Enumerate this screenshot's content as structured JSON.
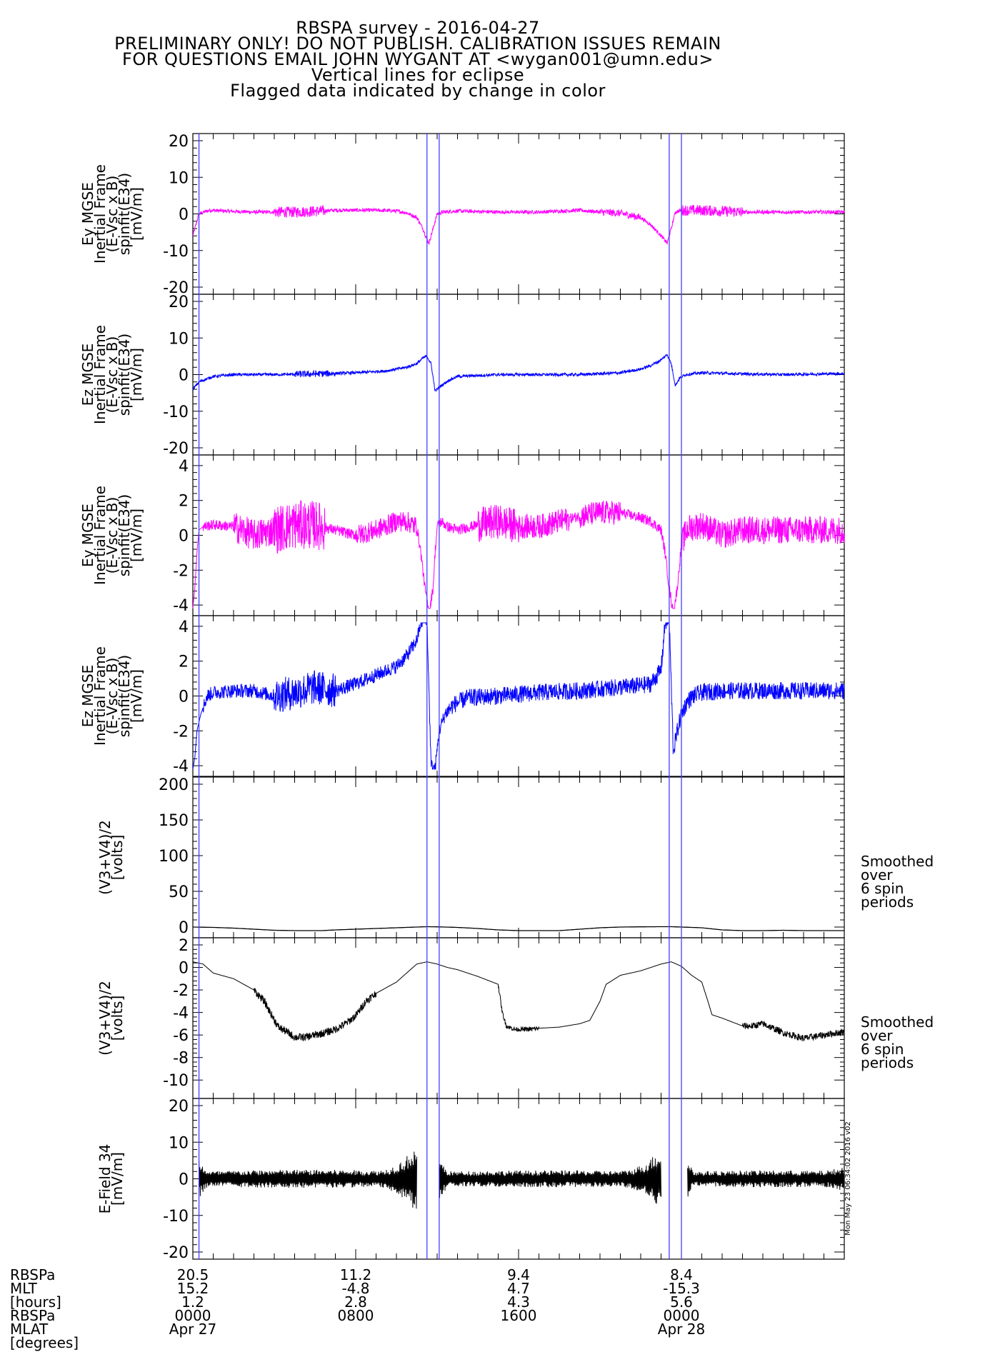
{
  "header": {
    "lines": [
      "RBSPA survey - 2016-04-27",
      "PRELIMINARY ONLY! DO NOT PUBLISH. CALIBRATION ISSUES REMAIN",
      "FOR QUESTIONS EMAIL JOHN WYGANT AT <wygan001@umn.edu>",
      "Vertical lines for eclipse",
      "Flagged data indicated by change in color"
    ]
  },
  "colors": {
    "magenta": "#ff00ff",
    "blue": "#0000ff",
    "black": "#000000",
    "eclipse": "#4040ff"
  },
  "side_note": "Mon May 23 06:34:02 2016 v02",
  "chart_data": [
    {
      "type": "line",
      "id": "panel1",
      "ylabel_lines": [
        "Ey MGSE",
        "Inertial Frame",
        "(E-Vsc x B)",
        "spinfit(E34)",
        "[mV/m]"
      ],
      "yticks": [
        "20",
        "10",
        "0",
        "-10",
        "-20"
      ],
      "ylim": [
        -20,
        20
      ],
      "series": [
        {
          "color": "magenta",
          "x": [
            0,
            0.3,
            0.8,
            1.5,
            3,
            5,
            7,
            9,
            10,
            10.5,
            11,
            11.3,
            11.5,
            11.6,
            11.8,
            12,
            12.3,
            13,
            15,
            17,
            19,
            20,
            21,
            22,
            22.5,
            23,
            23.3,
            23.5,
            23.7,
            24,
            25,
            27,
            29,
            31,
            32
          ],
          "y": [
            -6,
            0,
            1,
            0.8,
            0.5,
            0.5,
            1,
            1,
            0.8,
            0.3,
            -1,
            -4,
            -7,
            -8,
            -4,
            0,
            0.5,
            0.8,
            0.5,
            0.5,
            1,
            0.5,
            0.2,
            -1,
            -3,
            -6,
            -8,
            -4,
            0.5,
            1,
            1,
            0.5,
            0.5,
            0.5,
            0.5
          ]
        }
      ],
      "noise": [
        [
          0,
          32,
          0.5
        ],
        [
          4,
          6.5,
          1.5
        ],
        [
          20,
          22,
          1
        ],
        [
          24,
          27,
          1.5
        ]
      ]
    },
    {
      "type": "line",
      "id": "panel2",
      "ylabel_lines": [
        "Ez MGSE",
        "Inertial Frame",
        "(E-Vsc x B)",
        "spinfit(E34)",
        "[mV/m]"
      ],
      "yticks": [
        "20",
        "10",
        "0",
        "-10",
        "-20"
      ],
      "ylim": [
        -20,
        20
      ],
      "series": [
        {
          "color": "blue",
          "x": [
            0,
            0.3,
            1,
            2,
            4,
            6,
            8,
            9.5,
            10.5,
            11,
            11.3,
            11.5,
            11.7,
            11.9,
            12.2,
            12.6,
            13,
            15,
            17,
            19,
            21,
            22,
            22.5,
            23,
            23.3,
            23.5,
            23.7,
            23.9,
            24.2,
            25,
            27,
            29,
            31,
            32
          ],
          "y": [
            -4,
            -2,
            -0.5,
            0,
            0,
            0.2,
            0.5,
            1,
            2,
            3,
            4.5,
            5,
            3,
            -4.5,
            -3,
            -1.5,
            -0.5,
            0,
            0,
            0,
            0.5,
            1.5,
            2.5,
            4,
            5.5,
            3,
            -3,
            -1,
            0,
            0.5,
            0.2,
            0,
            0.2,
            0.3
          ]
        }
      ],
      "noise": [
        [
          0,
          32,
          0.4
        ],
        [
          5,
          7,
          0.9
        ]
      ]
    },
    {
      "type": "line",
      "id": "panel3",
      "ylabel_lines": [
        "Ey MGSE",
        "Inertial Frame",
        "(E-Vsc x B)",
        "spinfit(E34)",
        "[mV/m]"
      ],
      "yticks": [
        "4",
        "2",
        "0",
        "-2",
        "-4"
      ],
      "ylim": [
        -4.2,
        4.2
      ],
      "series": [
        {
          "color": "magenta",
          "x": [
            0,
            0.1,
            0.2,
            0.3,
            0.5,
            1,
            2,
            3,
            4,
            5,
            6,
            7,
            8,
            9,
            10,
            10.5,
            11,
            11.2,
            11.4,
            11.6,
            11.8,
            11.9,
            12,
            12.2,
            12.5,
            13,
            14,
            15,
            16,
            17,
            18,
            19,
            20,
            21,
            22,
            22.5,
            23,
            23.2,
            23.4,
            23.6,
            23.8,
            24,
            24.3,
            25,
            26,
            27,
            28,
            29,
            30,
            31,
            32
          ],
          "y": [
            -4.2,
            -3,
            -1,
            0.3,
            0.5,
            0.6,
            0.5,
            0,
            0.3,
            0.6,
            0.6,
            0.3,
            0,
            0.3,
            0.8,
            0.8,
            0.5,
            -1,
            -3,
            -4.5,
            -3,
            -1,
            0.5,
            0.8,
            0.5,
            0.3,
            0.6,
            0.8,
            0.5,
            0.5,
            0.8,
            1.1,
            1.3,
            1.3,
            1.0,
            0.8,
            0.3,
            -1,
            -3,
            -4.5,
            -3,
            -0.5,
            0.4,
            0.6,
            0,
            0.3,
            0.3,
            0.3,
            0.3,
            0.3,
            0.3
          ]
        }
      ],
      "noise": [
        [
          0.5,
          32,
          0.3
        ],
        [
          2,
          4,
          0.9
        ],
        [
          4,
          6.5,
          1.4
        ],
        [
          8,
          11,
          0.6
        ],
        [
          14,
          16,
          1.0
        ],
        [
          16,
          18.5,
          0.7
        ],
        [
          19,
          21,
          0.7
        ],
        [
          24,
          25,
          0.8
        ],
        [
          25,
          32,
          0.8
        ]
      ]
    },
    {
      "type": "line",
      "id": "panel4",
      "ylabel_lines": [
        "Ez MGSE",
        "Inertial Frame",
        "(E-Vsc x B)",
        "spinfit(E34)",
        "[mV/m]"
      ],
      "yticks": [
        "4",
        "2",
        "0",
        "-2",
        "-4"
      ],
      "ylim": [
        -4.2,
        4.2
      ],
      "series": [
        {
          "color": "blue",
          "x": [
            0,
            0.1,
            0.2,
            0.4,
            0.7,
            1,
            2,
            3,
            4,
            5,
            6,
            7,
            8,
            9,
            10,
            10.5,
            11,
            11.2,
            11.5,
            11.7,
            11.9,
            12.1,
            12.4,
            12.8,
            13.5,
            15,
            17,
            19,
            21,
            22,
            22.5,
            23,
            23.2,
            23.4,
            23.6,
            23.8,
            24,
            24.3,
            24.6,
            25,
            26,
            28,
            30,
            32
          ],
          "y": [
            -4.2,
            -3.5,
            -2,
            -1,
            0,
            0.2,
            0.3,
            0.3,
            0,
            0.2,
            0.5,
            0.3,
            0.7,
            1.2,
            1.7,
            2.3,
            3.2,
            4.2,
            4.5,
            -4,
            -4.2,
            -2,
            -1,
            -0.5,
            -0.1,
            0,
            0.2,
            0.3,
            0.5,
            0.6,
            0.7,
            1.5,
            4.2,
            4.5,
            -3.2,
            -2,
            -1,
            -0.3,
            0,
            0.2,
            0.3,
            0.3,
            0.3,
            0.3
          ]
        }
      ],
      "noise": [
        [
          0.5,
          32,
          0.4
        ],
        [
          4,
          7,
          1.0
        ],
        [
          12.5,
          32,
          0.5
        ]
      ]
    },
    {
      "type": "line",
      "id": "panel5",
      "ylabel_lines": [
        "(V3+V4)/2",
        "[volts]"
      ],
      "yticks": [
        "200",
        "150",
        "100",
        "50",
        "0"
      ],
      "ylim": [
        -5,
        200
      ],
      "annotation": [
        "Smoothed",
        "over",
        "6 spin",
        "periods"
      ],
      "series": [
        {
          "color": "black",
          "x": [
            0,
            1,
            2,
            3,
            4,
            5,
            6,
            7,
            8,
            9,
            10,
            11,
            11.5,
            12,
            13,
            14,
            15,
            16,
            17,
            18,
            19,
            20,
            21,
            22,
            23,
            23.5,
            24,
            25,
            26,
            27,
            28,
            29,
            30,
            31,
            32
          ],
          "y": [
            0,
            -0.5,
            -1.5,
            -3,
            -4.5,
            -5,
            -5.5,
            -4,
            -3,
            -2,
            -1,
            0,
            0.5,
            0.3,
            -0.5,
            -2,
            -4,
            -5,
            -5,
            -5,
            -3,
            -1,
            0,
            0.3,
            0.5,
            0.5,
            0,
            -1,
            -4,
            -5,
            -5,
            -4.5,
            -5,
            -5,
            -5
          ]
        }
      ]
    },
    {
      "type": "line",
      "id": "panel6",
      "ylabel_lines": [
        "(V3+V4)/2",
        "[volts]"
      ],
      "yticks": [
        "2",
        "0",
        "-2",
        "-4",
        "-6",
        "-8",
        "-10"
      ],
      "ylim": [
        -11,
        2
      ],
      "annotation": [
        "Smoothed",
        "over",
        "6 spin",
        "periods"
      ],
      "series": [
        {
          "color": "black",
          "x": [
            0,
            0.5,
            1,
            2,
            3,
            3.5,
            3.8,
            4.2,
            4.6,
            5,
            5.5,
            6,
            6.5,
            7,
            7.5,
            8,
            8.5,
            9,
            9.5,
            10,
            10.5,
            11,
            11.5,
            12,
            12.5,
            13,
            14,
            15,
            15.2,
            15.4,
            15.8,
            16.5,
            17,
            18,
            19,
            19.5,
            20,
            20.3,
            21,
            22,
            23,
            23.5,
            24,
            24.5,
            25,
            25.3,
            25.5,
            26,
            27,
            27.5,
            28,
            29,
            30,
            31,
            32
          ],
          "y": [
            0.5,
            0.3,
            -0.5,
            -1,
            -2,
            -3,
            -4,
            -5.3,
            -5.7,
            -6.2,
            -6.2,
            -6,
            -5.8,
            -5.5,
            -5,
            -4.3,
            -3,
            -2.3,
            -1.8,
            -1.3,
            -0.5,
            0.3,
            0.5,
            0.3,
            0,
            -0.2,
            -0.8,
            -1.5,
            -4,
            -5.2,
            -5.5,
            -5.5,
            -5.4,
            -5.3,
            -5,
            -4.7,
            -3,
            -1.5,
            -0.7,
            -0.3,
            0.3,
            0.5,
            0.1,
            -0.7,
            -1.3,
            -3,
            -4.2,
            -4.5,
            -5.2,
            -5.2,
            -5,
            -5.8,
            -6.3,
            -6,
            -5.7
          ]
        }
      ],
      "noise": [
        [
          3,
          9,
          0.35
        ],
        [
          15,
          17,
          0.2
        ],
        [
          27,
          32,
          0.3
        ]
      ]
    },
    {
      "type": "line",
      "id": "panel7",
      "ylabel_lines": [
        "E-Field 34",
        "[mV/m]"
      ],
      "yticks": [
        "20",
        "10",
        "0",
        "-10",
        "-20"
      ],
      "ylim": [
        -20,
        20
      ],
      "series": [
        {
          "color": "black",
          "x": [
            0,
            32
          ],
          "y": [
            0,
            0
          ]
        }
      ],
      "segments": [
        [
          0.3,
          11
        ],
        [
          12.1,
          23
        ],
        [
          24.3,
          32
        ]
      ]
    }
  ],
  "xaxis": {
    "row_labels": [
      "RBSPa",
      "MLT",
      "[hours]",
      "RBSPa",
      "MLAT",
      "[degrees]"
    ],
    "columns": [
      {
        "lines": [
          "20.5",
          "15.2",
          "1.2",
          "0000",
          "Apr 27"
        ]
      },
      {
        "lines": [
          "11.2",
          "-4.8",
          "2.8",
          "0800",
          ""
        ]
      },
      {
        "lines": [
          "9.4",
          "4.7",
          "4.3",
          "1600",
          ""
        ]
      },
      {
        "lines": [
          "8.4",
          "-15.3",
          "5.6",
          "0000",
          "Apr 28"
        ]
      }
    ]
  },
  "eclipse_hours": [
    0.3,
    11.5,
    12.1,
    23.4,
    24.0
  ]
}
